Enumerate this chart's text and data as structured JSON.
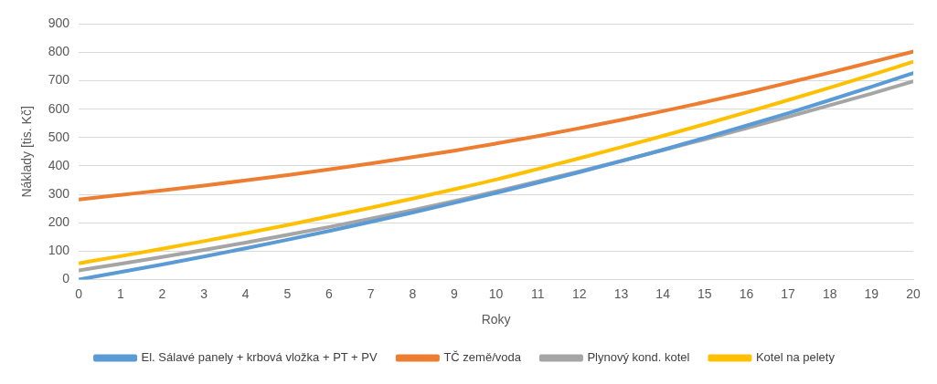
{
  "chart_data": {
    "type": "line",
    "xlabel": "Roky",
    "ylabel": "Náklady [tis. Kč]",
    "x": [
      0,
      1,
      2,
      3,
      4,
      5,
      6,
      7,
      8,
      9,
      10,
      11,
      12,
      13,
      14,
      15,
      16,
      17,
      18,
      19,
      20
    ],
    "xlim": [
      0,
      20
    ],
    "xticks": [
      0,
      1,
      2,
      3,
      4,
      5,
      6,
      7,
      8,
      9,
      10,
      11,
      12,
      13,
      14,
      15,
      16,
      17,
      18,
      19,
      20
    ],
    "series": [
      {
        "name": "El. Sálavé panely + krbová vložka + PT + PV",
        "color": "#5b9bd5",
        "values": [
          0,
          26,
          53,
          81,
          110,
          140,
          171,
          203,
          236,
          270,
          305,
          341,
          378,
          417,
          457,
          499,
          542,
          586,
          632,
          679,
          727
        ]
      },
      {
        "name": "TČ země/voda",
        "color": "#ed7d31",
        "values": [
          282,
          298,
          314,
          331,
          349,
          368,
          388,
          409,
          431,
          454,
          479,
          505,
          533,
          562,
          593,
          625,
          658,
          693,
          729,
          766,
          803
        ]
      },
      {
        "name": "Plynový kond. kotel",
        "color": "#a5a5a5",
        "values": [
          32,
          55,
          79,
          104,
          130,
          157,
          185,
          214,
          244,
          276,
          310,
          345,
          381,
          418,
          456,
          494,
          533,
          573,
          614,
          655,
          698
        ]
      },
      {
        "name": "Kotel na pelety",
        "color": "#ffc000",
        "values": [
          57,
          82,
          108,
          135,
          163,
          192,
          222,
          253,
          285,
          318,
          352,
          389,
          427,
          466,
          506,
          547,
          589,
          632,
          676,
          721,
          767
        ]
      }
    ],
    "ylim": [
      0,
      900
    ],
    "yticks": [
      0,
      100,
      200,
      300,
      400,
      500,
      600,
      700,
      800,
      900
    ],
    "grid": "y",
    "legend": "bottom",
    "marker": "none",
    "line_style": "solid"
  }
}
